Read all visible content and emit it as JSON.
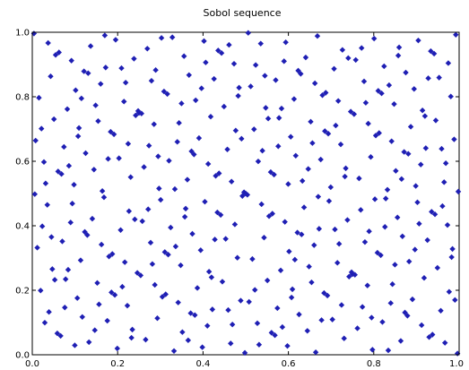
{
  "chart_data": {
    "type": "scatter",
    "title": "Sobol sequence",
    "xlabel": "",
    "ylabel": "",
    "xlim": [
      0.0,
      1.0
    ],
    "ylim": [
      0.0,
      1.0
    ],
    "grid": false,
    "xticks": [
      "0.0",
      "0.2",
      "0.4",
      "0.6",
      "0.8",
      "1.0"
    ],
    "yticks": [
      "0.0",
      "0.2",
      "0.4",
      "0.6",
      "0.8",
      "1.0"
    ],
    "marker": "diamond",
    "marker_color": "#1f1fb4",
    "series": [
      {
        "points": []
      }
    ]
  }
}
